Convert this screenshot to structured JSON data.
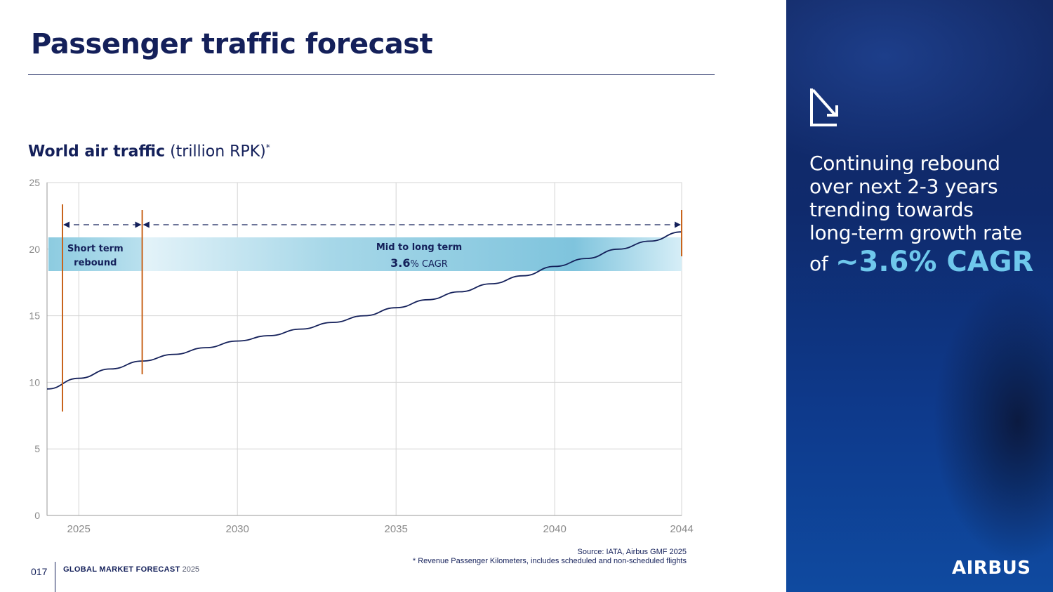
{
  "page": {
    "title": "Passenger traffic forecast",
    "chart_heading_bold": "World air traffic",
    "chart_heading_units": "(trillion RPK)",
    "chart_heading_mark": "*",
    "source_line": "Source: IATA, Airbus GMF 2025",
    "footnote_line": "*  Revenue Passenger Kilometers, includes scheduled and non-scheduled flights",
    "page_number": "017",
    "footer_title": "GLOBAL MARKET FORECAST",
    "footer_year": "2025"
  },
  "side_panel": {
    "text_lines": [
      "Continuing rebound",
      "over next 2-3 years",
      "trending towards",
      "long-term growth rate"
    ],
    "text_prefix": "of",
    "highlight": "~3.6% CAGR",
    "logo": "AIRBUS",
    "icon": "arrow-down-right-icon"
  },
  "colors": {
    "navy": "#14205a",
    "orange": "#c8641c",
    "band": "#7cc4dc",
    "highlight": "#6fc8ec"
  },
  "chart_data": {
    "type": "line",
    "xlim": [
      2024,
      2044
    ],
    "ylim": [
      0,
      25
    ],
    "xticks": [
      2025,
      2030,
      2035,
      2040,
      2044
    ],
    "yticks": [
      0,
      5,
      10,
      15,
      20,
      25
    ],
    "grid": true,
    "series": [
      {
        "x": [
          2024,
          2025,
          2026,
          2027,
          2028,
          2029,
          2030,
          2031,
          2032,
          2033,
          2034,
          2035,
          2036,
          2037,
          2038,
          2039,
          2040,
          2041,
          2042,
          2043,
          2044
        ],
        "values": [
          9.5,
          10.3,
          11.0,
          11.6,
          12.1,
          12.6,
          13.1,
          13.5,
          14.0,
          14.5,
          15.0,
          15.6,
          16.2,
          16.8,
          17.4,
          18.0,
          18.7,
          19.3,
          20.0,
          20.6,
          21.3
        ]
      }
    ],
    "periods": [
      {
        "label_line1": "Short term",
        "label_line2": "rebound",
        "start": 2024,
        "end": 2027
      },
      {
        "label_line1": "Mid to long term",
        "rate": "3.6",
        "rate_unit": "% CAGR",
        "start": 2027,
        "end": 2044
      }
    ]
  }
}
